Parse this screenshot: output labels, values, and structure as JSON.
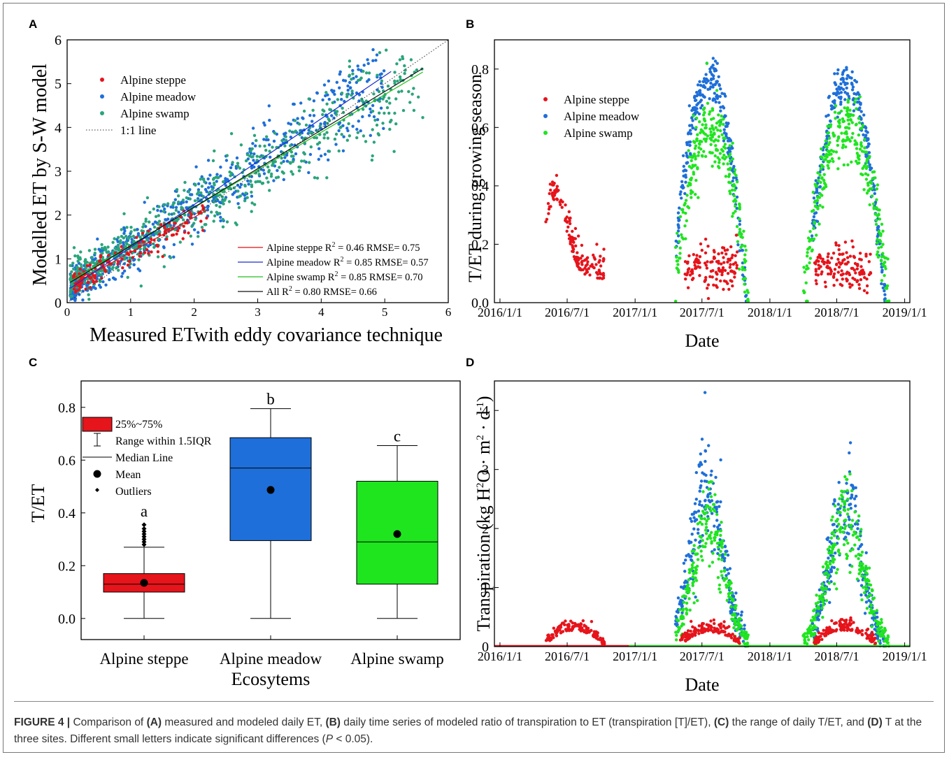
{
  "caption": {
    "figure_label": "FIGURE 4 |",
    "p1": " Comparison of ",
    "A": "(A)",
    "p2": " measured and modeled daily ET, ",
    "B": "(B)",
    "p3": " daily time series of modeled ratio of transpiration to ET (transpiration [T]/ET), ",
    "C": "(C)",
    "p4": " the range of daily T/ET, and ",
    "D": "(D)",
    "p5": " T at the three sites. Different small letters indicate significant differences (",
    "P": "P",
    "p6": " < 0.05)."
  },
  "colors": {
    "steppe": "#e6141b",
    "meadow": "#1e6fd9",
    "swamp_A": "#2aa57a",
    "swamp": "#1fe51f",
    "fit_steppe": "#e01010",
    "fit_meadow": "#1a2fd0",
    "fit_swamp": "#20c020",
    "fit_all": "#111111"
  },
  "chart_data": [
    {
      "panel": "A",
      "type": "scatter",
      "xlabel": "Measured ETwith eddy covariance technique",
      "ylabel": "Modelled ET by S-W model",
      "xlim": [
        0,
        6
      ],
      "ylim": [
        0,
        6
      ],
      "xticks": [
        "0",
        "1",
        "2",
        "3",
        "4",
        "5",
        "6"
      ],
      "yticks": [
        "0",
        "1",
        "2",
        "3",
        "4",
        "5",
        "6"
      ],
      "legend": [
        "Alpine steppe",
        "Alpine meadow",
        "Alpine swamp",
        "1:1 line"
      ],
      "fits": [
        {
          "name": "Alpine steppe",
          "label": "Alpine steppe R",
          "stats": " = 0.46 RMSE= 0.75",
          "slope": 0.8,
          "intercept": 0.35,
          "x0": 0.1,
          "x1": 2.2
        },
        {
          "name": "Alpine meadow",
          "label": "Alpine meadow R",
          "stats": " = 0.85 RMSE= 0.57",
          "slope": 0.98,
          "intercept": 0.28,
          "x0": 0.05,
          "x1": 5.1
        },
        {
          "name": "Alpine swamp",
          "label": "Alpine swamp R",
          "stats": " = 0.85 RMSE= 0.70",
          "slope": 0.86,
          "intercept": 0.45,
          "x0": 0.05,
          "x1": 5.6
        },
        {
          "name": "All",
          "label": "All R",
          "stats": " = 0.80 RMSE= 0.66",
          "slope": 0.88,
          "intercept": 0.42,
          "x0": 0.05,
          "x1": 5.6
        }
      ],
      "series_summary": [
        {
          "name": "Alpine steppe",
          "x_range": [
            0.1,
            2.2
          ],
          "y_around": "0.8x+0.35"
        },
        {
          "name": "Alpine meadow",
          "x_range": [
            0.05,
            5.0
          ],
          "y_around": "0.98x+0.28"
        },
        {
          "name": "Alpine swamp",
          "x_range": [
            0.05,
            5.6
          ],
          "y_around": "0.86x+0.45"
        }
      ]
    },
    {
      "panel": "B",
      "type": "scatter",
      "xlabel": "Date",
      "ylabel": "T/ET during growing season",
      "xticks": [
        "2016/1/1",
        "2016/7/1",
        "2017/1/1",
        "2017/7/1",
        "2018/1/1",
        "2018/7/1",
        "2019/1/1"
      ],
      "ylim": [
        0,
        0.9
      ],
      "yticks": [
        "0.0",
        "0.2",
        "0.4",
        "0.6",
        "0.8"
      ],
      "legend": [
        "Alpine steppe",
        "Alpine meadow",
        "Alpine swamp"
      ],
      "series": [
        {
          "name": "Alpine steppe",
          "seasons": [
            {
              "start": "2016/5/1",
              "end": "2016/10/10",
              "peak": 0.33,
              "peak_date": "2016/6/1",
              "base": 0.08
            },
            {
              "start": "2017/5/15",
              "end": "2017/10/5",
              "peak": 0.18,
              "base": 0.05
            },
            {
              "start": "2018/5/1",
              "end": "2018/10/1",
              "peak": 0.16,
              "base": 0.05
            }
          ]
        },
        {
          "name": "Alpine meadow",
          "seasons": [
            {
              "start": "2017/4/20",
              "end": "2017/10/30",
              "peak": 0.77,
              "peak_date": "2017/7/20"
            },
            {
              "start": "2018/4/25",
              "end": "2018/11/10",
              "peak": 0.75,
              "peak_date": "2018/7/25"
            }
          ]
        },
        {
          "name": "Alpine swamp",
          "seasons": [
            {
              "start": "2017/4/20",
              "end": "2017/11/5",
              "peak": 0.6,
              "peak_date": "2017/7/25"
            },
            {
              "start": "2018/4/1",
              "end": "2018/11/20",
              "peak": 0.6,
              "peak_date": "2018/7/25"
            }
          ]
        }
      ]
    },
    {
      "panel": "C",
      "type": "box",
      "xlabel": "Ecosytems",
      "ylabel": "T/ET",
      "ylim": [
        -0.08,
        0.9
      ],
      "yticks": [
        "0.0",
        "0.2",
        "0.4",
        "0.6",
        "0.8"
      ],
      "legend": [
        "25%~75%",
        "Range within 1.5IQR",
        "Median Line",
        "Mean",
        "Outliers"
      ],
      "categories": [
        "Alpine steppe",
        "Alpine meadow",
        "Alpine swamp"
      ],
      "letters": [
        "a",
        "b",
        "c"
      ],
      "boxes": [
        {
          "name": "Alpine steppe",
          "min": 0.0,
          "q1": 0.1,
          "median": 0.13,
          "q3": 0.17,
          "max": 0.27,
          "mean": 0.135,
          "outliers": [
            0.28,
            0.29,
            0.3,
            0.31,
            0.32,
            0.33,
            0.34,
            0.355
          ]
        },
        {
          "name": "Alpine meadow",
          "min": 0.0,
          "q1": 0.295,
          "median": 0.57,
          "q3": 0.685,
          "max": 0.795,
          "mean": 0.487
        },
        {
          "name": "Alpine swamp",
          "min": 0.0,
          "q1": 0.13,
          "median": 0.29,
          "q3": 0.52,
          "max": 0.655,
          "mean": 0.32
        }
      ]
    },
    {
      "panel": "D",
      "type": "scatter",
      "xlabel": "Date",
      "ylabel": "Transpiration (kg H2O · m2 · d-1)",
      "xticks": [
        "2016/1/1",
        "2016/7/1",
        "2017/1/1",
        "2017/7/1",
        "2018/1/1",
        "2018/7/1",
        "2019/1/1"
      ],
      "ylim": [
        0,
        4.5
      ],
      "yticks": [
        "0",
        "1",
        "2",
        "3",
        "4"
      ],
      "series": [
        {
          "name": "Alpine steppe",
          "seasons": [
            {
              "start": "2016/5/1",
              "end": "2016/10/10",
              "peak": 0.5
            },
            {
              "start": "2017/5/1",
              "end": "2017/10/15",
              "peak": 0.45
            },
            {
              "start": "2018/5/1",
              "end": "2018/10/15",
              "peak": 0.5
            }
          ]
        },
        {
          "name": "Alpine meadow",
          "seasons": [
            {
              "start": "2017/4/20",
              "end": "2017/10/30",
              "peak": 3.9,
              "peak_date": "2017/7/15"
            },
            {
              "start": "2018/4/25",
              "end": "2018/11/10",
              "peak": 3.5,
              "peak_date": "2018/7/25"
            }
          ]
        },
        {
          "name": "Alpine swamp",
          "seasons": [
            {
              "start": "2017/4/20",
              "end": "2017/11/5",
              "peak": 3.0,
              "peak_date": "2017/7/20"
            },
            {
              "start": "2018/4/1",
              "end": "2018/11/20",
              "peak": 3.1,
              "peak_date": "2018/7/25"
            }
          ]
        }
      ]
    }
  ],
  "panel_labels": [
    "A",
    "B",
    "C",
    "D"
  ]
}
